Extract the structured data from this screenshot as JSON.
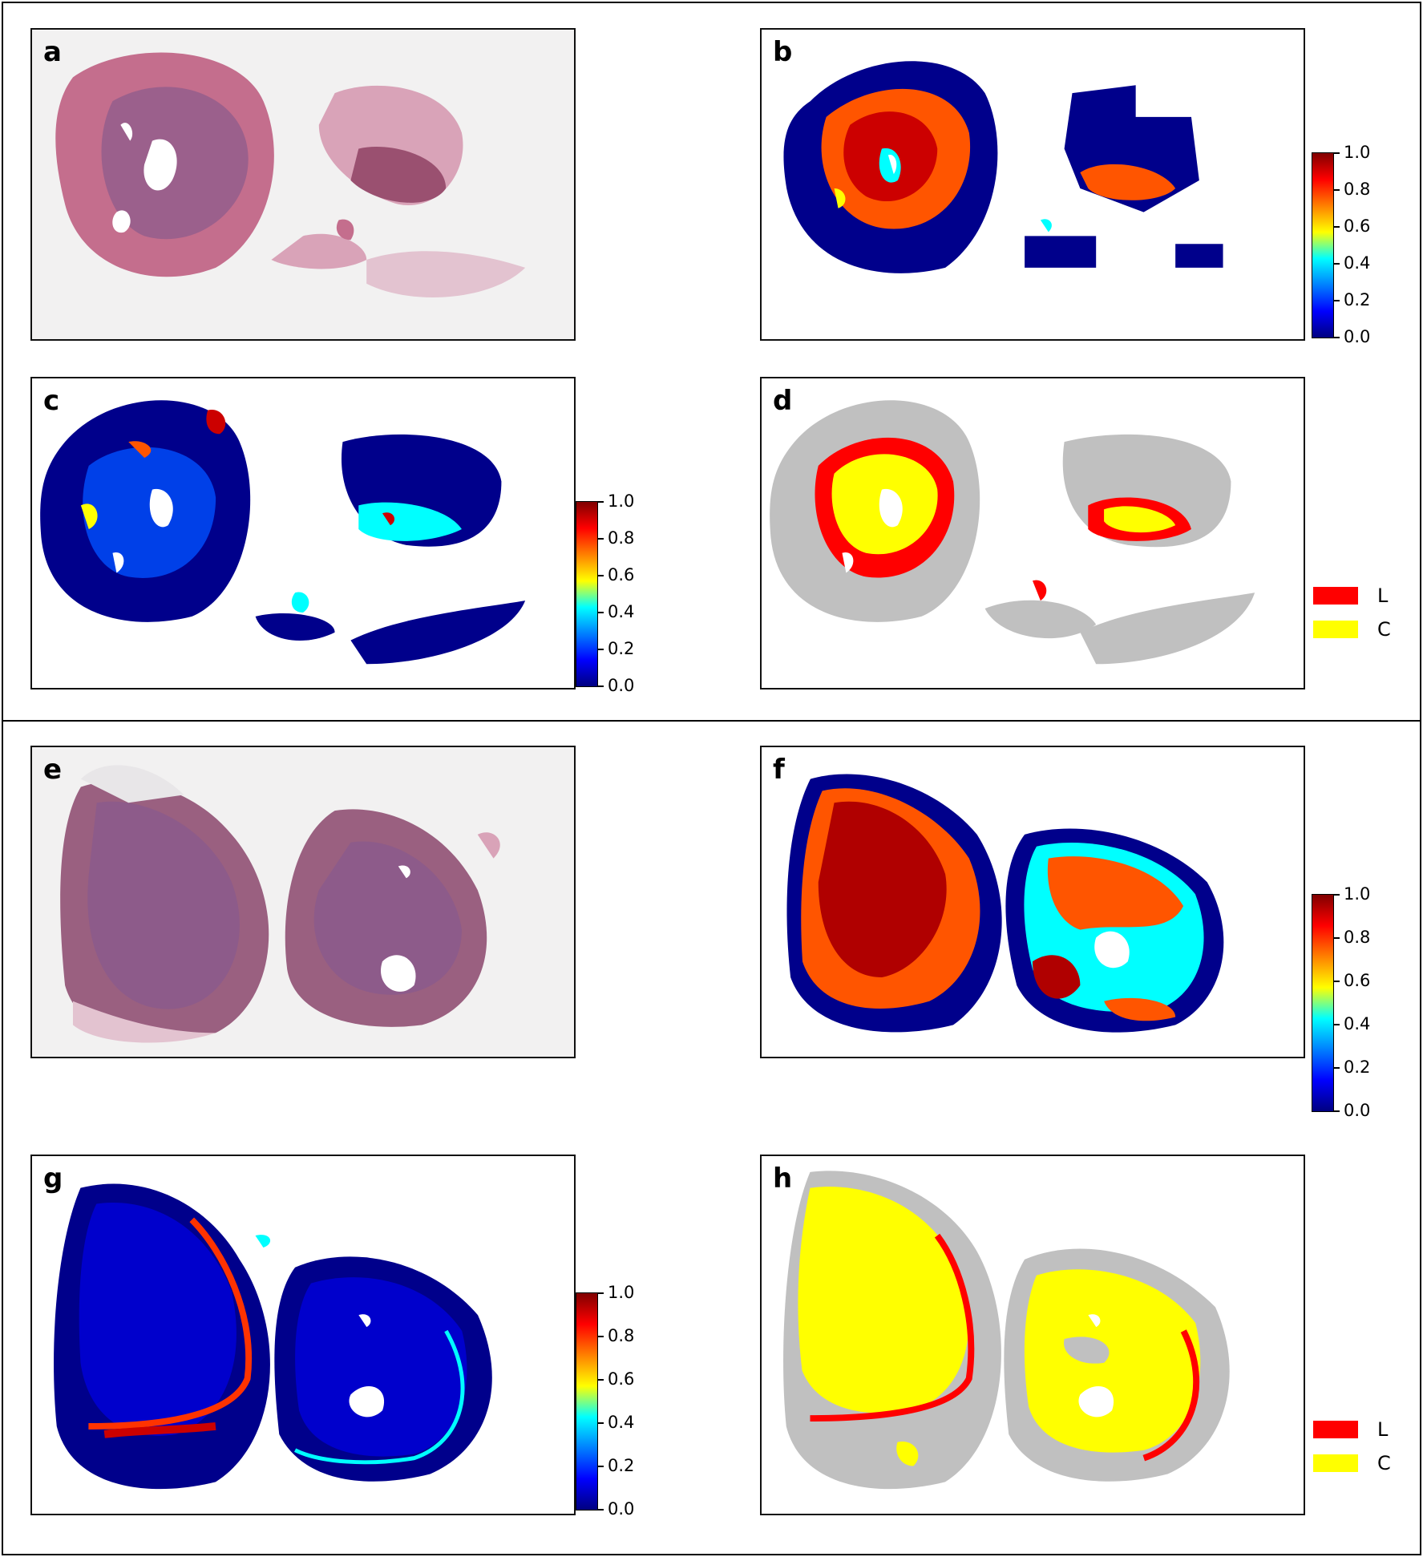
{
  "figure": {
    "panels": [
      {
        "id": "a",
        "label": "a",
        "kind": "he-stain"
      },
      {
        "id": "b",
        "label": "b",
        "kind": "heatmap"
      },
      {
        "id": "c",
        "label": "c",
        "kind": "heatmap"
      },
      {
        "id": "d",
        "label": "d",
        "kind": "segmentation"
      },
      {
        "id": "e",
        "label": "e",
        "kind": "he-stain"
      },
      {
        "id": "f",
        "label": "f",
        "kind": "heatmap"
      },
      {
        "id": "g",
        "label": "g",
        "kind": "heatmap"
      },
      {
        "id": "h",
        "label": "h",
        "kind": "segmentation"
      }
    ],
    "colorbar": {
      "ticks": [
        "1.0",
        "0.8",
        "0.6",
        "0.4",
        "0.2",
        "0.0"
      ],
      "colors": [
        "#800000",
        "#ff0000",
        "#ff8000",
        "#ffff00",
        "#00ffff",
        "#0080ff",
        "#0000ff",
        "#000080"
      ]
    },
    "legend": {
      "items": [
        {
          "label": "L",
          "color": "#ff0000"
        },
        {
          "label": "C",
          "color": "#ffff00"
        }
      ]
    },
    "colors": {
      "tissue_pink": "#c46e8d",
      "tissue_purple": "#8a5a8c",
      "background_gray": "#c0c0c0",
      "heat_dark_blue": "#00008b"
    }
  }
}
